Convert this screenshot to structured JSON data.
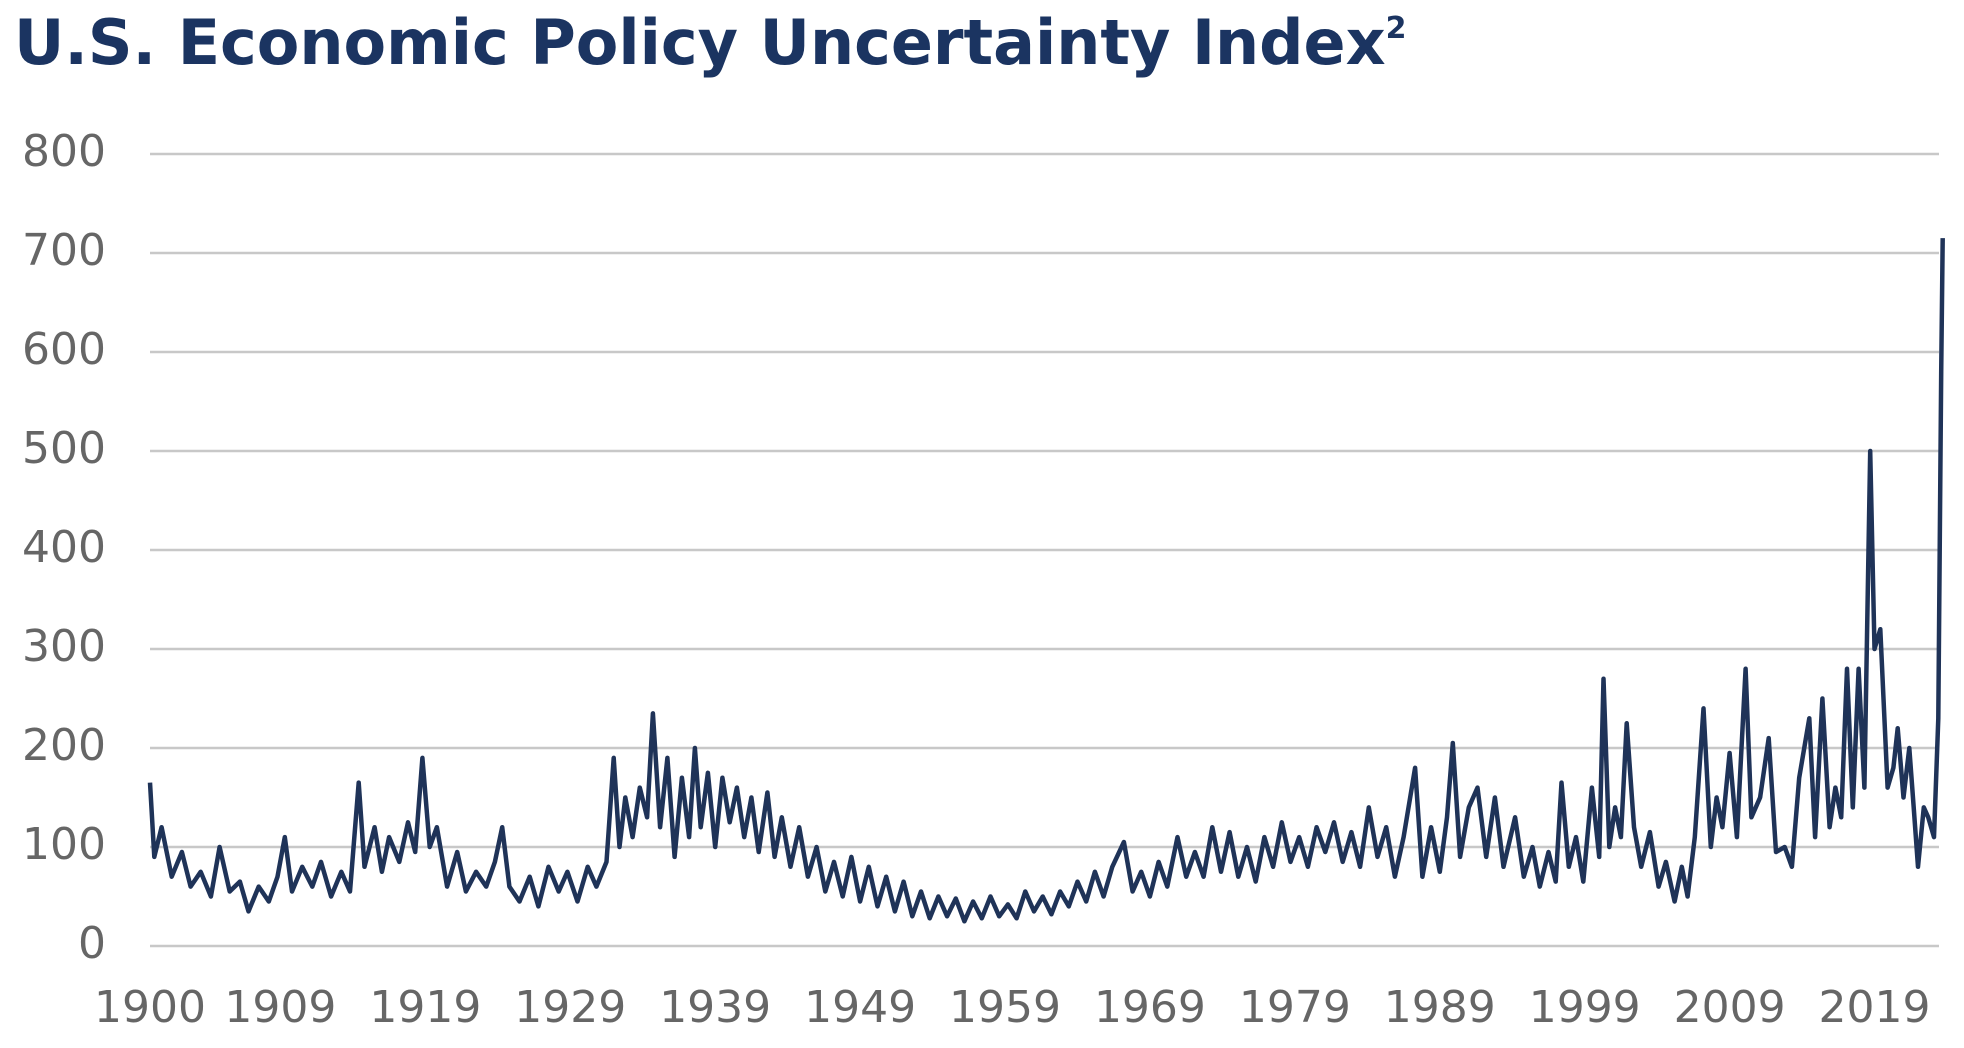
{
  "chart_data": {
    "type": "line",
    "title": "U.S. Economic Policy Uncertainty Index",
    "title_note": "2",
    "series": [
      {
        "color": "#1f3358",
        "x": [
          1900.0,
          1900.3,
          1900.8,
          1901.5,
          1902.2,
          1902.8,
          1903.5,
          1904.2,
          1904.8,
          1905.5,
          1906.2,
          1906.8,
          1907.5,
          1908.2,
          1908.8,
          1909.3,
          1909.8,
          1910.5,
          1911.2,
          1911.8,
          1912.5,
          1913.2,
          1913.8,
          1914.4,
          1914.8,
          1915.5,
          1916.0,
          1916.5,
          1917.2,
          1917.8,
          1918.3,
          1918.8,
          1919.3,
          1919.8,
          1920.5,
          1921.2,
          1921.8,
          1922.5,
          1923.2,
          1923.8,
          1924.3,
          1924.8,
          1925.5,
          1926.2,
          1926.8,
          1927.5,
          1928.2,
          1928.8,
          1929.5,
          1930.2,
          1930.8,
          1931.5,
          1932.0,
          1932.4,
          1932.8,
          1933.3,
          1933.8,
          1934.3,
          1934.7,
          1935.2,
          1935.7,
          1936.2,
          1936.7,
          1937.2,
          1937.6,
          1938.0,
          1938.5,
          1939.0,
          1939.5,
          1940.0,
          1940.5,
          1941.0,
          1941.5,
          1942.0,
          1942.6,
          1943.1,
          1943.6,
          1944.2,
          1944.8,
          1945.4,
          1946.0,
          1946.6,
          1947.2,
          1947.8,
          1948.4,
          1949.0,
          1949.6,
          1950.2,
          1950.8,
          1951.4,
          1952.0,
          1952.6,
          1953.2,
          1953.8,
          1954.4,
          1955.0,
          1955.6,
          1956.2,
          1956.8,
          1957.4,
          1958.0,
          1958.6,
          1959.2,
          1959.8,
          1960.4,
          1961.0,
          1961.6,
          1962.2,
          1962.8,
          1963.4,
          1964.0,
          1964.6,
          1965.2,
          1965.8,
          1966.4,
          1967.2,
          1967.8,
          1968.4,
          1969.0,
          1969.6,
          1970.2,
          1970.9,
          1971.5,
          1972.1,
          1972.7,
          1973.3,
          1973.9,
          1974.5,
          1975.1,
          1975.7,
          1976.3,
          1976.9,
          1977.5,
          1978.1,
          1978.7,
          1979.3,
          1979.9,
          1980.5,
          1981.1,
          1981.7,
          1982.3,
          1982.9,
          1983.5,
          1984.1,
          1984.7,
          1985.3,
          1985.9,
          1986.5,
          1987.3,
          1987.8,
          1988.4,
          1989.0,
          1989.5,
          1989.9,
          1990.4,
          1991.0,
          1991.6,
          1992.2,
          1992.8,
          1993.4,
          1994.2,
          1994.8,
          1995.4,
          1995.9,
          1996.5,
          1997.0,
          1997.4,
          1997.9,
          1998.4,
          1998.9,
          1999.5,
          2000.0,
          2000.3,
          2000.7,
          2001.1,
          2001.5,
          2001.9,
          2002.4,
          2002.9,
          2003.5,
          2004.1,
          2004.6,
          2005.2,
          2005.7,
          2006.1,
          2006.6,
          2007.2,
          2007.7,
          2008.1,
          2008.5,
          2009.0,
          2009.5,
          2010.1,
          2010.5,
          2011.1,
          2011.7,
          2012.2,
          2012.8,
          2013.3,
          2013.8,
          2014.5,
          2014.9,
          2015.4,
          2015.9,
          2016.3,
          2016.7,
          2017.1,
          2017.5,
          2017.9,
          2018.3,
          2018.7,
          2019.0,
          2019.4,
          2019.9,
          2020.3,
          2020.6,
          2021.0,
          2021.4,
          2021.7,
          2022.0,
          2022.4,
          2022.7,
          2023.1,
          2023.4,
          2023.6,
          2023.7
        ],
        "values": [
          165,
          90,
          120,
          70,
          95,
          60,
          75,
          50,
          100,
          55,
          65,
          35,
          60,
          45,
          70,
          110,
          55,
          80,
          60,
          85,
          50,
          75,
          55,
          165,
          80,
          120,
          75,
          110,
          85,
          125,
          95,
          190,
          100,
          120,
          60,
          95,
          55,
          75,
          60,
          85,
          120,
          60,
          45,
          70,
          40,
          80,
          55,
          75,
          45,
          80,
          60,
          85,
          190,
          100,
          150,
          110,
          160,
          130,
          235,
          120,
          190,
          90,
          170,
          110,
          200,
          120,
          175,
          100,
          170,
          125,
          160,
          110,
          150,
          95,
          155,
          90,
          130,
          80,
          120,
          70,
          100,
          55,
          85,
          50,
          90,
          45,
          80,
          40,
          70,
          35,
          65,
          30,
          55,
          28,
          50,
          30,
          48,
          25,
          45,
          28,
          50,
          30,
          42,
          28,
          55,
          35,
          50,
          32,
          55,
          40,
          65,
          45,
          75,
          50,
          80,
          105,
          55,
          75,
          50,
          85,
          60,
          110,
          70,
          95,
          70,
          120,
          75,
          115,
          70,
          100,
          65,
          110,
          80,
          125,
          85,
          110,
          80,
          120,
          95,
          125,
          85,
          115,
          80,
          140,
          90,
          120,
          70,
          110,
          180,
          70,
          120,
          75,
          130,
          205,
          90,
          140,
          160,
          90,
          150,
          80,
          130,
          70,
          100,
          60,
          95,
          65,
          165,
          80,
          110,
          65,
          160,
          90,
          270,
          100,
          140,
          110,
          225,
          120,
          80,
          115,
          60,
          85,
          45,
          80,
          50,
          110,
          240,
          100,
          150,
          120,
          195,
          110,
          280,
          130,
          150,
          210,
          95,
          100,
          80,
          170,
          230,
          110,
          250,
          120,
          160,
          130,
          280,
          140,
          280,
          160,
          500,
          300,
          320,
          160,
          180,
          220,
          150,
          200,
          140,
          80,
          140,
          130,
          110,
          230,
          580,
          715
        ]
      }
    ],
    "xlim": [
      1900,
      2024
    ],
    "xticks": [
      1900,
      1909,
      1919,
      1929,
      1939,
      1949,
      1959,
      1969,
      1979,
      1989,
      1999,
      2009,
      2019
    ],
    "ylim": [
      0,
      800
    ],
    "yticks": [
      0,
      100,
      200,
      300,
      400,
      500,
      600,
      700,
      800
    ],
    "grid": true
  }
}
